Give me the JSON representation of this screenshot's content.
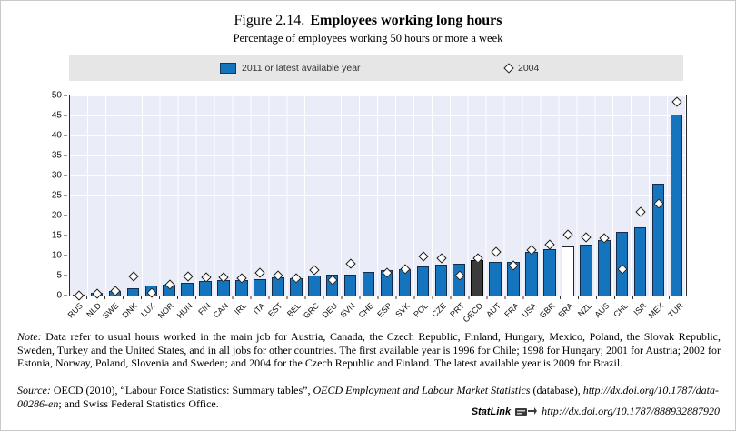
{
  "header": {
    "figure_label": "Figure 2.14.",
    "title": "Employees working long hours",
    "subtitle": "Percentage of employees working 50 hours or more a week"
  },
  "legend": {
    "series1_label": "2011 or latest available year",
    "series2_label": "2004"
  },
  "colors": {
    "bar_blue": "#1474be",
    "bar_dark": "#3b3b3b",
    "bar_white": "#ffffff",
    "plot_background": "#eaedf7",
    "gridline": "#ffffff",
    "legend_band": "#e6e6e6"
  },
  "chart_data": {
    "type": "bar",
    "title": "Employees working long hours",
    "subtitle": "Percentage of employees working 50 hours or more a week",
    "xlabel": "",
    "ylabel": "",
    "ylim": [
      0,
      50
    ],
    "yticks": [
      0,
      5,
      10,
      15,
      20,
      25,
      30,
      35,
      40,
      45,
      50
    ],
    "grid": true,
    "legend_position": "top",
    "categories": [
      "RUS",
      "NLD",
      "SWE",
      "DNK",
      "LUX",
      "NOR",
      "HUN",
      "FIN",
      "CAN",
      "IRL",
      "ITA",
      "EST",
      "BEL",
      "GRC",
      "DEU",
      "SVN",
      "CHE",
      "ESP",
      "SVK",
      "POL",
      "CZE",
      "PRT",
      "OECD",
      "AUT",
      "FRA",
      "USA",
      "GBR",
      "BRA",
      "NZL",
      "AUS",
      "CHL",
      "ISR",
      "MEX",
      "TUR"
    ],
    "series": [
      {
        "name": "2011 or latest available year",
        "marker": "bar",
        "values": [
          0.2,
          0.6,
          1.1,
          1.9,
          2.4,
          2.8,
          3.1,
          3.7,
          3.9,
          3.9,
          4.1,
          4.5,
          4.4,
          5.1,
          5.2,
          5.3,
          5.8,
          6.3,
          6.7,
          7.2,
          7.7,
          8.0,
          8.8,
          8.5,
          8.3,
          10.9,
          11.6,
          12.2,
          12.8,
          13.9,
          15.8,
          17.1,
          28.0,
          45.3
        ]
      },
      {
        "name": "2004",
        "marker": "diamond",
        "values": [
          0.2,
          0.7,
          1.3,
          5.1,
          0.8,
          2.9,
          5.0,
          4.7,
          4.7,
          4.5,
          5.9,
          5.3,
          4.6,
          6.6,
          4.2,
          8.2,
          null,
          6.0,
          6.8,
          10.1,
          9.5,
          5.2,
          9.6,
          11.1,
          7.8,
          11.5,
          12.9,
          15.5,
          14.8,
          14.5,
          6.9,
          21.2,
          23.2,
          48.6
        ]
      }
    ],
    "bar_styles": [
      "blue",
      "blue",
      "blue",
      "blue",
      "blue",
      "blue",
      "blue",
      "blue",
      "blue",
      "blue",
      "blue",
      "blue",
      "blue",
      "blue",
      "blue",
      "blue",
      "blue",
      "blue",
      "blue",
      "blue",
      "blue",
      "blue",
      "dark",
      "blue",
      "blue",
      "blue",
      "blue",
      "white",
      "blue",
      "blue",
      "blue",
      "blue",
      "blue",
      "blue"
    ]
  },
  "footer": {
    "note_label": "Note:",
    "note_text": "Data refer to usual hours worked in the main job for Austria, Canada, the Czech Republic, Finland, Hungary, Mexico, Poland, the Slovak Republic, Sweden, Turkey and the United States, and in all jobs for other countries. The first available year is 1996 for Chile; 1998 for Hungary; 2001 for Austria; 2002 for Estonia, Norway, Poland, Slovenia and Sweden; and 2004 for the Czech Republic and Finland. The latest available year is 2009 for Brazil.",
    "source_segments": [
      {
        "text": "Source:",
        "italic": true
      },
      {
        "text": "  OECD (2010), “Labour Force Statistics: Summary tables”, ",
        "italic": false
      },
      {
        "text": "OECD Employment and Labour Market Statistics",
        "italic": true
      },
      {
        "text": " (database), ",
        "italic": false
      },
      {
        "text": "http://dx.doi.org/10.1787/data-00286-en",
        "italic": true
      },
      {
        "text": "; and Swiss Federal Statistics Office.",
        "italic": false
      }
    ],
    "statlink_label": "StatLink",
    "statlink_url": "http://dx.doi.org/10.1787/888932887920"
  }
}
